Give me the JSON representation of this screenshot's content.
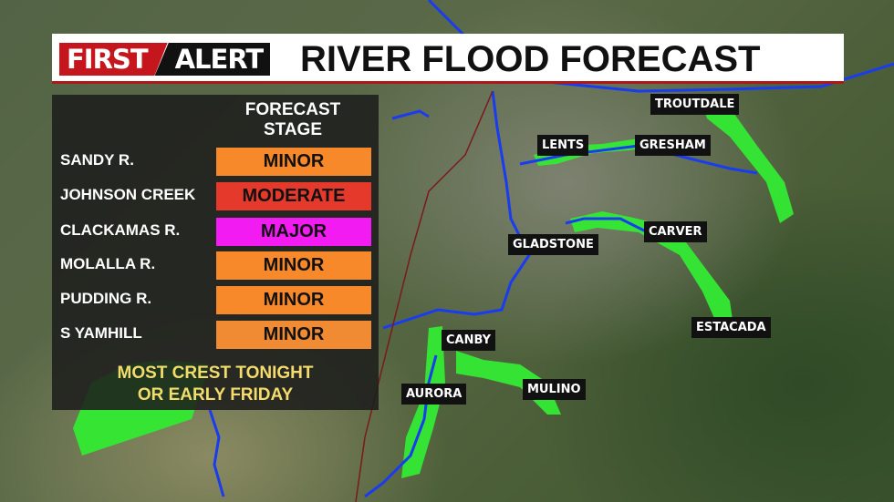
{
  "header": {
    "logo_first": "FIRST",
    "logo_alert": "ALERT",
    "title": "RIVER FLOOD FORECAST"
  },
  "panel": {
    "heading_line1": "FORECAST",
    "heading_line2": "STAGE",
    "rows": [
      {
        "river": "SANDY R.",
        "stage": "MINOR",
        "color": "#f7892a"
      },
      {
        "river": "JOHNSON CREEK",
        "stage": "MODERATE",
        "color": "#e5392b"
      },
      {
        "river": "CLACKAMAS R.",
        "stage": "MAJOR",
        "color": "#f21cf2"
      },
      {
        "river": "MOLALLA R.",
        "stage": "MINOR",
        "color": "#f7892a"
      },
      {
        "river": "PUDDING R.",
        "stage": "MINOR",
        "color": "#f7892a"
      },
      {
        "river": "S YAMHILL",
        "stage": "MINOR",
        "color": "#f08a33"
      }
    ],
    "footer_line1": "MOST CREST TONIGHT",
    "footer_line2": "OR EARLY FRIDAY"
  },
  "map": {
    "cities": [
      "TROUTDALE",
      "LENTS",
      "GRESHAM",
      "GLADSTONE",
      "CARVER",
      "ESTACADA",
      "CANBY",
      "MULINO",
      "AURORA"
    ],
    "flood_area_color": "#2ee62e",
    "river_color": "#1a3cf0"
  }
}
